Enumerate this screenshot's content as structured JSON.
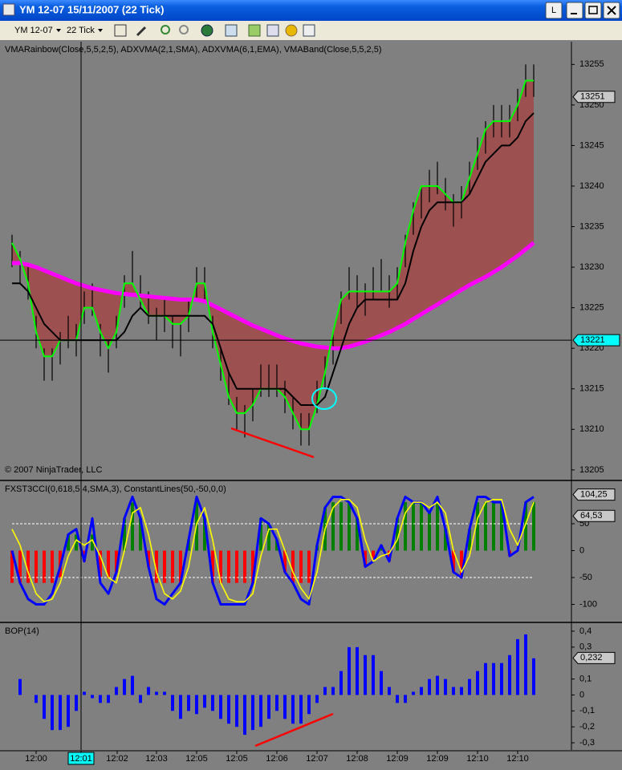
{
  "window": {
    "title": "YM 12-07  15/11/2007  (22 Tick)",
    "button": "L"
  },
  "toolbar": {
    "instrument": "YM 12-07",
    "period": "22 Tick"
  },
  "chart_data": [
    {
      "type": "price",
      "title": "VMARainbow(Close,5,5,2,5), ADXVMA(2,1,SMA), ADXVMA(6,1,EMA), VMABand(Close,5,5,2,5)",
      "annotation": "© 2007 NinjaTrader, LLC",
      "ylim": [
        13203.8,
        13257.8
      ],
      "yticks": [
        13205,
        13210,
        13215,
        13220,
        13225,
        13230,
        13235,
        13240,
        13245,
        13250,
        13255
      ],
      "bar_color": "#000000",
      "band_color": "#b03030",
      "high": [
        13234,
        13232,
        13230,
        13224,
        13220,
        13220,
        13222,
        13224,
        13223,
        13227,
        13228,
        13223,
        13221,
        13224,
        13229,
        13232,
        13229,
        13227,
        13225,
        13226,
        13224,
        13223,
        13226,
        13230,
        13230,
        13224,
        13220,
        13217,
        13214,
        13213,
        13215,
        13218,
        13218,
        13218,
        13216,
        13214,
        13212,
        13212,
        13216,
        13219,
        13222,
        13227,
        13230,
        13229,
        13228,
        13230,
        13231,
        13229,
        13230,
        13234,
        13238,
        13240,
        13242,
        13243,
        13241,
        13239,
        13240,
        13243,
        13246,
        13248,
        13250,
        13250,
        13250,
        13252,
        13255,
        13255
      ],
      "low": [
        13230,
        13228,
        13226,
        13220,
        13216,
        13216,
        13218,
        13220,
        13219,
        13223,
        13224,
        13219,
        13217,
        13220,
        13225,
        13228,
        13225,
        13223,
        13221,
        13222,
        13220,
        13219,
        13222,
        13226,
        13226,
        13220,
        13216,
        13213,
        13210,
        13209,
        13211,
        13214,
        13214,
        13214,
        13212,
        13210,
        13208,
        13208,
        13212,
        13215,
        13218,
        13223,
        13226,
        13225,
        13224,
        13226,
        13227,
        13225,
        13226,
        13230,
        13234,
        13236,
        13238,
        13239,
        13237,
        13235,
        13236,
        13239,
        13242,
        13244,
        13246,
        13246,
        13246,
        13248,
        13251,
        13251
      ],
      "series": [
        {
          "color": "#ff00ff",
          "width": 5,
          "values": [
            13230.5,
            13230.5,
            13230.3,
            13230,
            13229.6,
            13229.2,
            13228.8,
            13228.4,
            13228,
            13227.7,
            13227.4,
            13227.2,
            13227,
            13226.8,
            13226.7,
            13226.6,
            13226.5,
            13226.4,
            13226.3,
            13226.2,
            13226.1,
            13226,
            13226,
            13226,
            13225.8,
            13225.3,
            13224.8,
            13224.3,
            13223.8,
            13223.3,
            13222.8,
            13222.4,
            13222,
            13221.6,
            13221.2,
            13220.9,
            13220.6,
            13220.4,
            13220.2,
            13220.1,
            13220,
            13220,
            13220.2,
            13220.5,
            13220.8,
            13221.2,
            13221.6,
            13222,
            13222.5,
            13223,
            13223.6,
            13224.2,
            13224.8,
            13225.4,
            13226,
            13226.6,
            13227.2,
            13227.8,
            13228.3,
            13228.8,
            13229.4,
            13230,
            13230.7,
            13231.4,
            13232.2,
            13233
          ]
        },
        {
          "color": "#00ff00",
          "width": 2,
          "values": [
            13233,
            13231,
            13228,
            13222,
            13219,
            13219,
            13221,
            13221,
            13221,
            13225,
            13225,
            13222,
            13220,
            13222,
            13228,
            13228,
            13226,
            13224,
            13224,
            13224,
            13223,
            13223,
            13224,
            13228,
            13228,
            13222,
            13218,
            13214,
            13212,
            13212,
            13213,
            13215,
            13215,
            13215,
            13214,
            13212,
            13210,
            13210,
            13213,
            13217,
            13222,
            13226,
            13227,
            13227,
            13227,
            13227,
            13227,
            13227,
            13228,
            13233,
            13237,
            13240,
            13240,
            13240,
            13239,
            13238,
            13238,
            13241,
            13244,
            13247,
            13248,
            13248,
            13248,
            13250,
            13253,
            13253
          ]
        },
        {
          "color": "#000000",
          "width": 2,
          "values": [
            13228,
            13228,
            13227,
            13225,
            13223,
            13222,
            13221,
            13221,
            13221,
            13221,
            13221,
            13221,
            13221,
            13221,
            13222,
            13224,
            13225,
            13224,
            13224,
            13224,
            13224,
            13224,
            13224,
            13224,
            13224,
            13223,
            13220,
            13217,
            13215,
            13215,
            13215,
            13215,
            13215,
            13215,
            13215,
            13214,
            13213,
            13213,
            13213,
            13214,
            13217,
            13220,
            13223,
            13225,
            13226,
            13226,
            13226,
            13226,
            13226,
            13228,
            13232,
            13235,
            13237,
            13238,
            13238,
            13238,
            13238,
            13239,
            13241,
            13243,
            13244,
            13245,
            13245,
            13246,
            13248,
            13249
          ]
        }
      ],
      "markers": [
        {
          "value": 13251,
          "color": "#c8c8c8"
        }
      ],
      "crosshair": {
        "x": 8.6,
        "y": 13221,
        "color": "#00ffff"
      }
    },
    {
      "type": "oscillator",
      "title": "FXST3CCI(0,618,5,4,SMA,3), ConstantLines(50,-50,0,0)",
      "ylim": [
        -132,
        129
      ],
      "yticks": [
        50,
        0,
        -50,
        -100
      ],
      "constant_lines": [
        50,
        -50
      ],
      "histogram": {
        "up_color": "#008000",
        "down_color": "#ff0000",
        "values": [
          -60,
          -60,
          -60,
          -60,
          -60,
          -60,
          -50,
          30,
          30,
          -20,
          30,
          -50,
          -50,
          -40,
          60,
          90,
          60,
          -30,
          -60,
          -60,
          -60,
          -60,
          20,
          90,
          60,
          -60,
          -60,
          -60,
          -60,
          -60,
          -60,
          60,
          50,
          20,
          -40,
          -60,
          -60,
          -60,
          10,
          80,
          90,
          90,
          90,
          60,
          -30,
          -20,
          10,
          -20,
          60,
          90,
          90,
          90,
          70,
          90,
          40,
          -40,
          -50,
          40,
          90,
          90,
          90,
          90,
          -10,
          0,
          90,
          90
        ]
      },
      "series": [
        {
          "color": "#0000ff",
          "width": 3,
          "values": [
            0,
            -60,
            -90,
            -100,
            -100,
            -80,
            -30,
            30,
            40,
            -20,
            60,
            -60,
            -80,
            -40,
            60,
            100,
            60,
            -30,
            -90,
            -100,
            -80,
            -60,
            20,
            100,
            60,
            -60,
            -100,
            -100,
            -100,
            -100,
            -60,
            60,
            50,
            20,
            -40,
            -60,
            -90,
            -100,
            10,
            80,
            100,
            100,
            90,
            60,
            -30,
            -20,
            10,
            -20,
            60,
            100,
            90,
            90,
            70,
            100,
            40,
            -40,
            -50,
            40,
            100,
            100,
            90,
            90,
            -10,
            0,
            90,
            100
          ]
        },
        {
          "color": "#ffff00",
          "width": 1.6,
          "values": [
            40,
            10,
            -40,
            -80,
            -95,
            -90,
            -60,
            -10,
            20,
            10,
            20,
            -10,
            -50,
            -60,
            0,
            70,
            80,
            30,
            -40,
            -80,
            -90,
            -75,
            -30,
            50,
            80,
            20,
            -60,
            -90,
            -95,
            -95,
            -80,
            -10,
            40,
            40,
            0,
            -40,
            -70,
            -90,
            -40,
            40,
            80,
            95,
            95,
            80,
            20,
            -20,
            -10,
            -5,
            20,
            70,
            90,
            90,
            80,
            90,
            70,
            0,
            -40,
            -10,
            60,
            90,
            95,
            95,
            40,
            10,
            50,
            90
          ]
        }
      ],
      "markers": [
        {
          "value": 104.25,
          "label": "104,25",
          "color": "#c8c8c8"
        },
        {
          "value": 64.53,
          "label": "64,53",
          "color": "#c8c8c8"
        }
      ]
    },
    {
      "type": "bar",
      "title": "BOP(14)",
      "color": "#0000ff",
      "ylim": [
        -0.345,
        0.45
      ],
      "yticks": [
        {
          "value": 0.4,
          "label": "0,4"
        },
        {
          "value": 0.3,
          "label": "0,3"
        },
        {
          "value": 0.1,
          "label": "0,1"
        },
        0,
        {
          "value": -0.1,
          "label": "-0,1"
        },
        {
          "value": -0.2,
          "label": "-0,2"
        },
        {
          "value": -0.3,
          "label": "-0,3"
        }
      ],
      "values": [
        0,
        0.1,
        0,
        -0.05,
        -0.15,
        -0.22,
        -0.22,
        -0.2,
        -0.1,
        0.02,
        -0.02,
        -0.05,
        -0.05,
        0.05,
        0.1,
        0.12,
        -0.05,
        0.05,
        0.02,
        0.02,
        -0.1,
        -0.15,
        -0.1,
        -0.12,
        -0.08,
        -0.1,
        -0.15,
        -0.18,
        -0.2,
        -0.25,
        -0.22,
        -0.2,
        -0.15,
        -0.1,
        -0.15,
        -0.18,
        -0.18,
        -0.12,
        -0.05,
        0.05,
        0.05,
        0.15,
        0.3,
        0.3,
        0.25,
        0.25,
        0.15,
        0.05,
        -0.05,
        -0.05,
        0.02,
        0.05,
        0.1,
        0.12,
        0.1,
        0.05,
        0.05,
        0.1,
        0.15,
        0.2,
        0.2,
        0.2,
        0.25,
        0.35,
        0.38,
        0.23
      ],
      "markers": [
        {
          "value": 0.232,
          "label": "0,232",
          "color": "#c8c8c8"
        }
      ],
      "xlim": [
        -1,
        69.7
      ],
      "xticks": [
        {
          "value": 3,
          "label": "12:00"
        },
        {
          "value": 8.6,
          "label": "12:01"
        },
        {
          "value": 13.1,
          "label": "12:02"
        },
        {
          "value": 18,
          "label": "12:03"
        },
        {
          "value": 23,
          "label": "12:05"
        },
        {
          "value": 28,
          "label": "12:05"
        },
        {
          "value": 33,
          "label": "12:06"
        },
        {
          "value": 38,
          "label": "12:07"
        },
        {
          "value": 43,
          "label": "12:08"
        },
        {
          "value": 48,
          "label": "12:09"
        },
        {
          "value": 53,
          "label": "12:09"
        },
        {
          "value": 58,
          "label": "12:10"
        },
        {
          "value": 63,
          "label": "12:10"
        }
      ]
    }
  ]
}
